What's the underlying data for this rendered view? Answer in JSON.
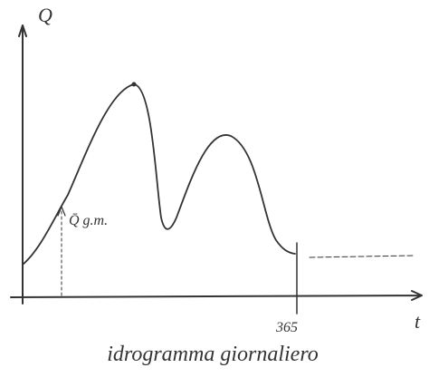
{
  "y_axis_label": "Q",
  "x_axis_label": "t",
  "annotation": "Q̄ g.m.",
  "x_tick": "365",
  "caption": "idrogramma giornaliero"
}
